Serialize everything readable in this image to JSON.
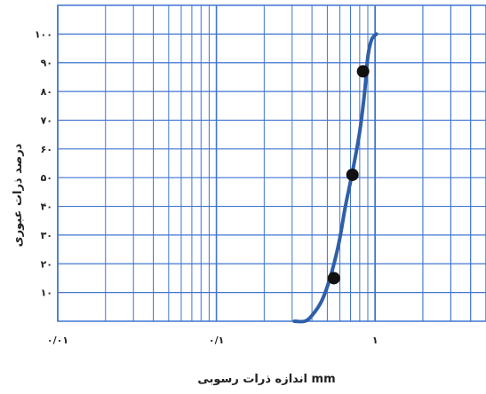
{
  "chart_data": {
    "type": "line",
    "title": "",
    "xlabel": "اندازه ذرات رسوبی mm",
    "ylabel": "درصد ذرات عبوری",
    "x_scale": "log",
    "xlim": [
      0.01,
      5
    ],
    "ylim": [
      0,
      110
    ],
    "x_ticks": [
      {
        "value": 0.01,
        "label": "۰/۰۱"
      },
      {
        "value": 0.1,
        "label": "۰/۱"
      },
      {
        "value": 1,
        "label": "۱"
      }
    ],
    "y_ticks": [
      {
        "value": 10,
        "label": "۱۰"
      },
      {
        "value": 20,
        "label": "۲۰"
      },
      {
        "value": 30,
        "label": "۳۰"
      },
      {
        "value": 40,
        "label": "۴۰"
      },
      {
        "value": 50,
        "label": "۵۰"
      },
      {
        "value": 60,
        "label": "۶۰"
      },
      {
        "value": 70,
        "label": "۷۰"
      },
      {
        "value": 80,
        "label": "۸۰"
      },
      {
        "value": 90,
        "label": "۹۰"
      },
      {
        "value": 100,
        "label": "۱۰۰"
      }
    ],
    "grid": true,
    "curve": {
      "x": [
        0.31,
        0.36,
        0.4,
        0.46,
        0.52,
        0.59,
        0.65,
        0.72,
        0.8,
        0.86,
        0.9,
        0.95,
        1.02
      ],
      "y": [
        0,
        0,
        2,
        7,
        15,
        27,
        40,
        52,
        66,
        80,
        92,
        98,
        100
      ]
    },
    "points": {
      "x": [
        0.55,
        0.72,
        0.84
      ],
      "y": [
        15,
        51,
        87
      ]
    },
    "colors": {
      "grid": "#3f74d0",
      "curve": "#2f5fa8",
      "points": "#111111"
    }
  }
}
